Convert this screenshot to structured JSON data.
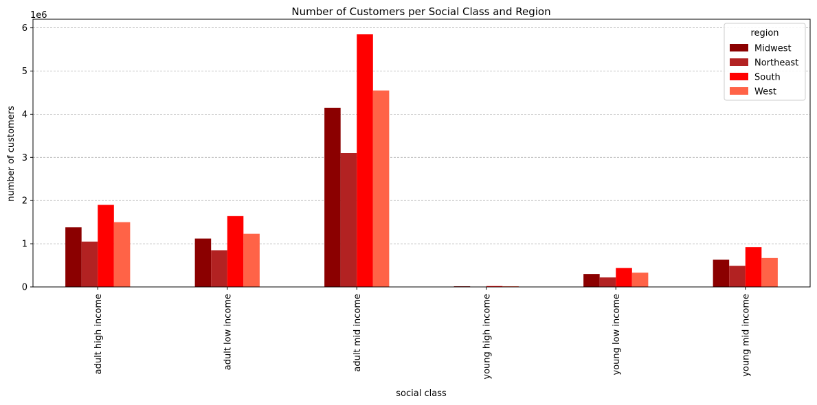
{
  "chart_data": {
    "type": "bar",
    "title": "Number of Customers per Social Class and Region",
    "xlabel": "social class",
    "ylabel": "number of customers",
    "y_offset_text": "1e6",
    "y_scale": 1000000,
    "ylim": [
      0,
      6200000
    ],
    "yticks": [
      0,
      1000000,
      2000000,
      3000000,
      4000000,
      5000000,
      6000000
    ],
    "ytick_labels": [
      "0",
      "1",
      "2",
      "3",
      "4",
      "5",
      "6"
    ],
    "grid": "y-dashed",
    "legend": {
      "title": "region",
      "placement": "top-right"
    },
    "categories": [
      "adult high income",
      "adult low income",
      "adult mid income",
      "young high income",
      "young low income",
      "young mid income"
    ],
    "series": [
      {
        "name": "Midwest",
        "color": "#8b0000",
        "values": [
          1380000,
          1120000,
          4150000,
          15000,
          300000,
          630000
        ]
      },
      {
        "name": "Northeast",
        "color": "#b22222",
        "values": [
          1050000,
          850000,
          3100000,
          8000,
          220000,
          490000
        ]
      },
      {
        "name": "South",
        "color": "#ff0000",
        "values": [
          1900000,
          1640000,
          5850000,
          20000,
          440000,
          920000
        ]
      },
      {
        "name": "West",
        "color": "#ff6347",
        "values": [
          1500000,
          1230000,
          4550000,
          16000,
          330000,
          670000
        ]
      }
    ]
  }
}
